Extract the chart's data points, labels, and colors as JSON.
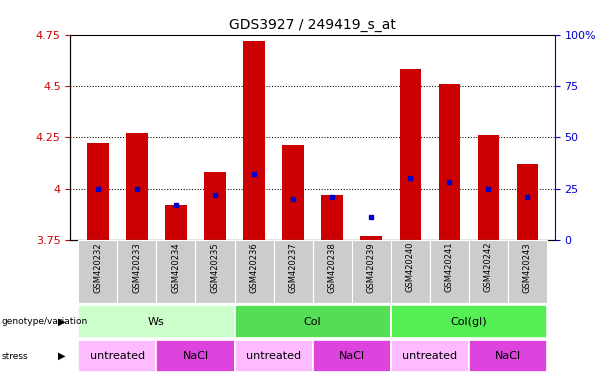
{
  "title": "GDS3927 / 249419_s_at",
  "samples": [
    "GSM420232",
    "GSM420233",
    "GSM420234",
    "GSM420235",
    "GSM420236",
    "GSM420237",
    "GSM420238",
    "GSM420239",
    "GSM420240",
    "GSM420241",
    "GSM420242",
    "GSM420243"
  ],
  "bar_tops": [
    4.22,
    4.27,
    3.92,
    4.08,
    4.72,
    4.21,
    3.97,
    3.77,
    4.58,
    4.51,
    4.26,
    4.12
  ],
  "bar_bottom": 3.75,
  "percentile_values": [
    4.0,
    4.0,
    3.92,
    3.97,
    4.07,
    3.95,
    3.96,
    3.86,
    4.05,
    4.03,
    4.0,
    3.96
  ],
  "ylim_left": [
    3.75,
    4.75
  ],
  "ylim_right": [
    0,
    100
  ],
  "yticks_left": [
    3.75,
    4.0,
    4.25,
    4.5,
    4.75
  ],
  "yticks_right": [
    0,
    25,
    50,
    75,
    100
  ],
  "ytick_labels_left": [
    "3.75",
    "4",
    "4.25",
    "4.5",
    "4.75"
  ],
  "ytick_labels_right": [
    "0",
    "25",
    "50",
    "75",
    "100%"
  ],
  "bar_color": "#cc0000",
  "percentile_color": "#0000cc",
  "genotype_groups": [
    {
      "label": "Ws",
      "start": 0,
      "end": 4,
      "color": "#ccffcc"
    },
    {
      "label": "Col",
      "start": 4,
      "end": 8,
      "color": "#55dd55"
    },
    {
      "label": "Col(gl)",
      "start": 8,
      "end": 12,
      "color": "#55ee55"
    }
  ],
  "stress_groups": [
    {
      "label": "untreated",
      "start": 0,
      "end": 2,
      "color": "#ffbbff"
    },
    {
      "label": "NaCl",
      "start": 2,
      "end": 4,
      "color": "#dd44dd"
    },
    {
      "label": "untreated",
      "start": 4,
      "end": 6,
      "color": "#ffbbff"
    },
    {
      "label": "NaCl",
      "start": 6,
      "end": 8,
      "color": "#dd44dd"
    },
    {
      "label": "untreated",
      "start": 8,
      "end": 10,
      "color": "#ffbbff"
    },
    {
      "label": "NaCl",
      "start": 10,
      "end": 12,
      "color": "#dd44dd"
    }
  ],
  "left_label_color": "#cc0000",
  "right_label_color": "#0000cc",
  "bar_width": 0.55,
  "background_color": "#ffffff",
  "gridline_yticks": [
    4.0,
    4.25,
    4.5
  ],
  "xticklabel_color": "#000000",
  "xticklabel_bg": "#cccccc"
}
